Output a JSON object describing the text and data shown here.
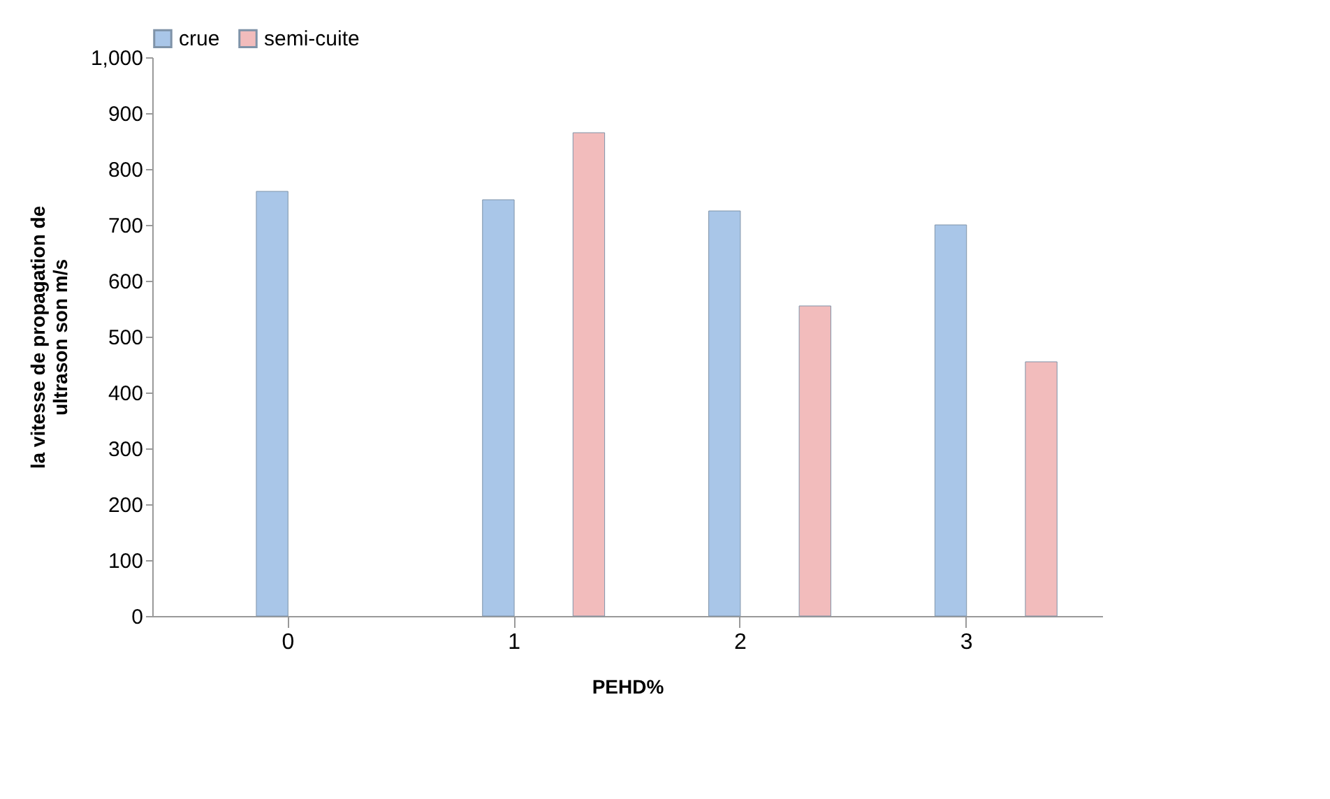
{
  "chart_data": {
    "type": "bar",
    "xlabel": "PEHD%",
    "ylabel": "la vitesse de propagation de ultrason son m/s",
    "categories": [
      "0",
      "1",
      "2",
      "3"
    ],
    "series": [
      {
        "name": "crue",
        "color": "#a9c6e8",
        "values": [
          760,
          745,
          725,
          700
        ]
      },
      {
        "name": "semi-cuite",
        "color": "#f2bcbc",
        "values": [
          null,
          865,
          555,
          455
        ]
      }
    ],
    "ylim": [
      0,
      1000
    ],
    "yticks": [
      0,
      100,
      200,
      300,
      400,
      500,
      600,
      700,
      800,
      900,
      {
        "value": 1000,
        "label": "1,000"
      }
    ],
    "grid": false,
    "legend": "top"
  }
}
